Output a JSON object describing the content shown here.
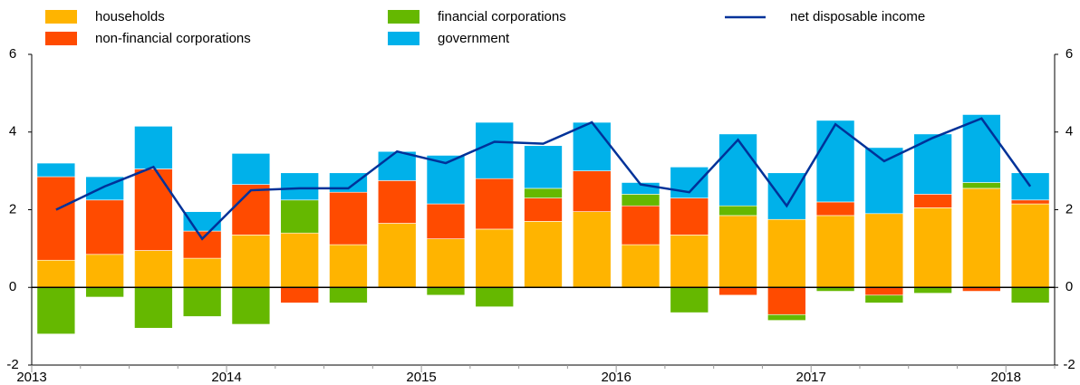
{
  "chart_data": {
    "type": "bar",
    "stacked": true,
    "categories": [
      "2013",
      null,
      null,
      null,
      "2014",
      null,
      null,
      null,
      "2015",
      null,
      null,
      null,
      "2016",
      null,
      null,
      null,
      "2017",
      null,
      null,
      null,
      "2018"
    ],
    "series": [
      {
        "name": "households",
        "color": "#ffb400",
        "values": [
          0.7,
          0.85,
          0.95,
          0.75,
          1.35,
          1.4,
          1.1,
          1.65,
          1.25,
          1.5,
          1.7,
          1.95,
          1.1,
          1.35,
          1.85,
          1.75,
          1.85,
          1.9,
          2.05,
          2.55,
          2.15
        ]
      },
      {
        "name": "non-financial corporations",
        "color": "#ff4b00",
        "values": [
          2.15,
          1.4,
          2.1,
          0.7,
          1.3,
          -0.4,
          1.35,
          1.1,
          0.9,
          1.3,
          0.6,
          1.05,
          1.0,
          0.95,
          -0.2,
          -0.7,
          0.35,
          -0.2,
          0.35,
          -0.1,
          0.1
        ]
      },
      {
        "name": "financial corporations",
        "color": "#65b800",
        "values": [
          -1.2,
          -0.25,
          -1.05,
          -0.75,
          -0.95,
          0.85,
          -0.4,
          0,
          -0.2,
          -0.5,
          0.25,
          0,
          0.3,
          -0.65,
          0.25,
          -0.15,
          -0.1,
          -0.2,
          -0.15,
          0.15,
          -0.4
        ]
      },
      {
        "name": "government",
        "color": "#00b1ea",
        "values": [
          0.35,
          0.6,
          1.1,
          0.5,
          0.8,
          0.7,
          0.5,
          0.75,
          1.25,
          1.45,
          1.1,
          1.25,
          0.3,
          0.8,
          1.85,
          1.2,
          2.1,
          1.7,
          1.55,
          1.75,
          0.7
        ]
      },
      {
        "name": "net disposable income",
        "color": "#003299",
        "type": "line",
        "values": [
          2.0,
          2.6,
          3.1,
          1.25,
          2.5,
          2.55,
          2.55,
          3.5,
          3.2,
          3.75,
          3.7,
          4.25,
          2.65,
          2.45,
          3.8,
          2.1,
          4.2,
          3.25,
          3.85,
          4.35,
          2.6
        ]
      }
    ],
    "ylim": [
      -2,
      6
    ],
    "yticks": [
      -2,
      0,
      2,
      4,
      6
    ]
  }
}
